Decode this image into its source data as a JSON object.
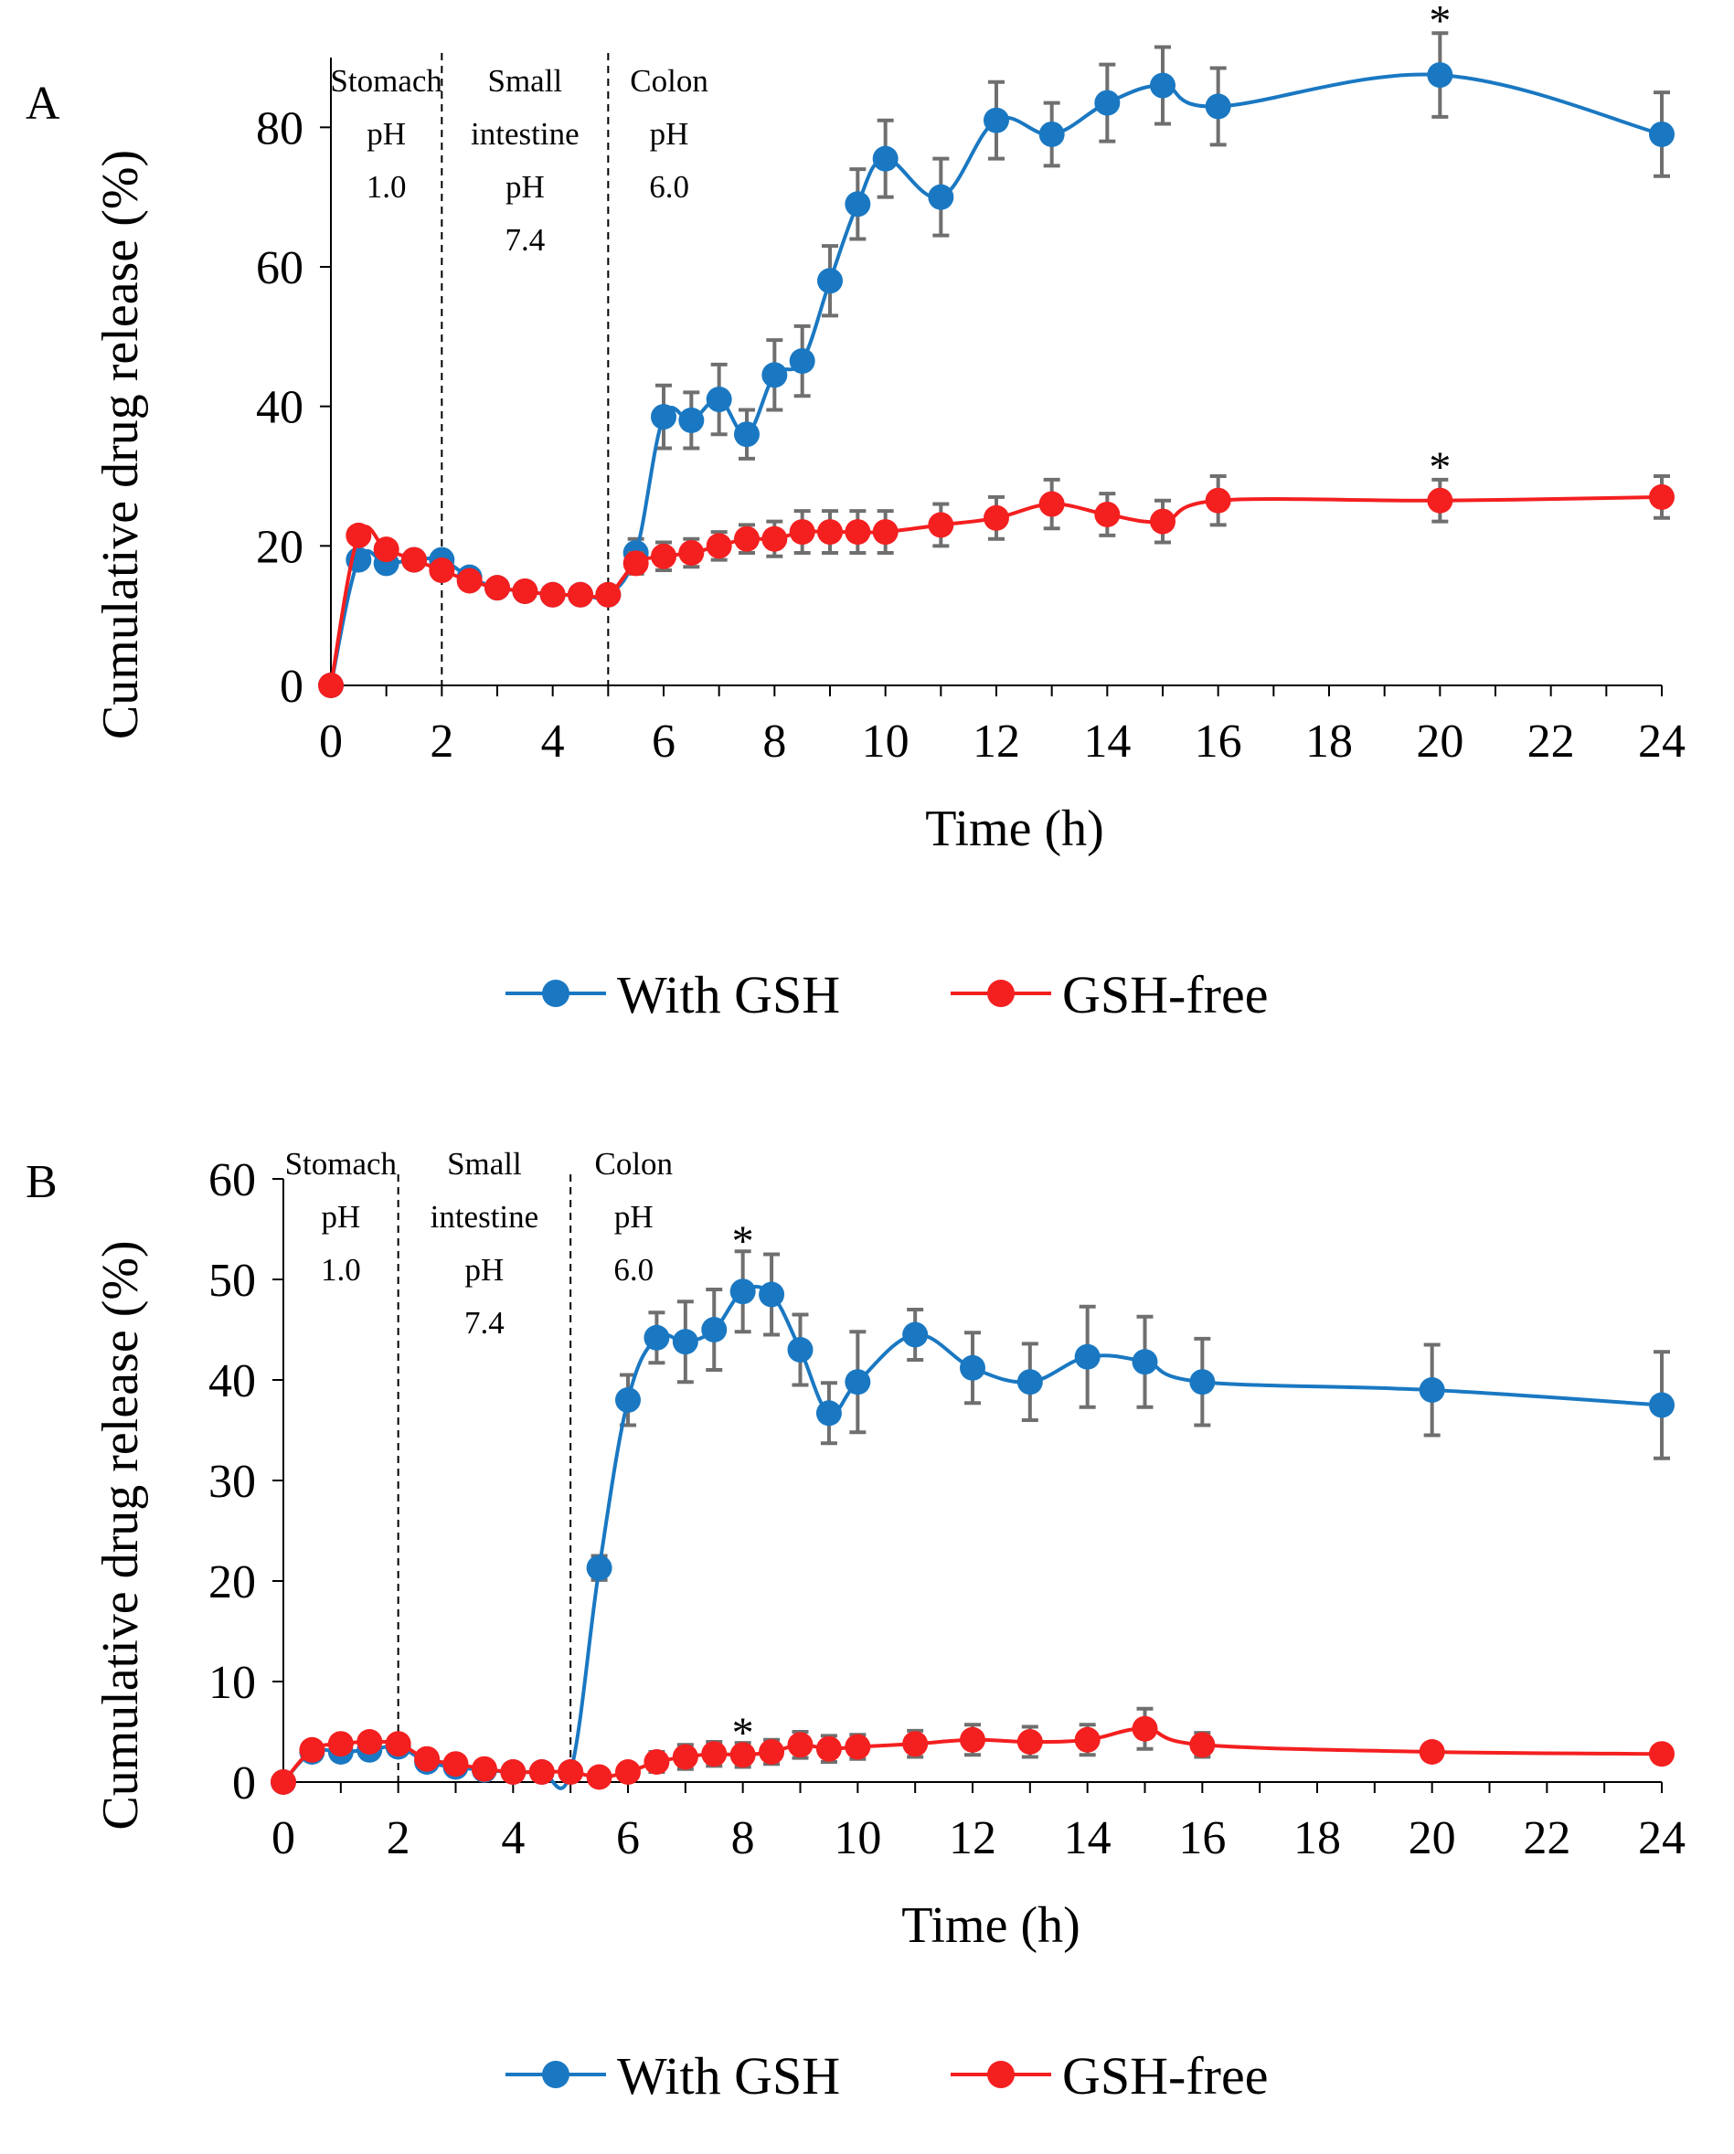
{
  "chart_data": [
    {
      "type": "line",
      "panel": "A",
      "xlabel": "Time (h)",
      "ylabel": "Cumulative drug release (%)",
      "xlim": [
        0,
        24
      ],
      "ylim": [
        0,
        90
      ],
      "x_ticks": [
        0,
        2,
        4,
        6,
        8,
        10,
        12,
        14,
        16,
        18,
        20,
        22,
        24
      ],
      "y_ticks": [
        0,
        20,
        40,
        60,
        80
      ],
      "regions": [
        {
          "lines": [
            "Stomach",
            "pH",
            "1.0"
          ]
        },
        {
          "lines": [
            "Small",
            "intestine",
            "pH",
            "7.4"
          ]
        },
        {
          "lines": [
            "Colon",
            "pH",
            "6.0"
          ]
        }
      ],
      "region_boundaries": [
        2,
        5
      ],
      "significance": [
        {
          "series": "With GSH",
          "x": 20,
          "label": "*"
        },
        {
          "series": "GSH-free",
          "x": 20,
          "label": "*"
        }
      ],
      "series": [
        {
          "name": "With GSH",
          "color": "#1a78c2",
          "x": [
            0,
            0.5,
            1,
            1.5,
            2,
            2.5,
            3,
            3.5,
            4,
            4.5,
            5,
            5.5,
            6,
            6.5,
            7,
            7.5,
            8,
            8.5,
            9,
            9.5,
            10,
            11,
            12,
            13,
            14,
            15,
            16,
            20,
            24
          ],
          "y": [
            0,
            18,
            17.5,
            18,
            18,
            15.5,
            14,
            13.5,
            13,
            13,
            13,
            19,
            38.5,
            38,
            41,
            36,
            44.5,
            46.5,
            58,
            69,
            75.5,
            70,
            81,
            79,
            83.5,
            86,
            83,
            87.5,
            79
          ],
          "err": [
            0,
            1,
            1,
            1,
            1,
            1,
            1,
            1,
            1,
            1,
            1,
            2,
            4.5,
            4,
            5,
            3.5,
            5,
            5,
            5,
            5,
            5.5,
            5.5,
            5.5,
            4.5,
            5.5,
            5.5,
            5.5,
            6,
            6
          ]
        },
        {
          "name": "GSH-free",
          "color": "#f41f1f",
          "x": [
            0,
            0.5,
            1,
            1.5,
            2,
            2.5,
            3,
            3.5,
            4,
            4.5,
            5,
            5.5,
            6,
            6.5,
            7,
            7.5,
            8,
            8.5,
            9,
            9.5,
            10,
            11,
            12,
            13,
            14,
            15,
            16,
            20,
            24
          ],
          "y": [
            0,
            21.5,
            19.5,
            18,
            16.5,
            15,
            14,
            13.5,
            13,
            13,
            13,
            17.5,
            18.5,
            19,
            20,
            21,
            21,
            22,
            22,
            22,
            22,
            23,
            24,
            26,
            24.5,
            23.5,
            26.5,
            26.5,
            27
          ],
          "err": [
            0,
            1,
            1,
            1,
            1,
            1,
            1,
            1,
            1,
            1,
            1,
            1.5,
            2,
            2,
            2,
            2,
            2.5,
            3,
            3,
            3,
            3,
            3,
            3,
            3.5,
            3,
            3,
            3.5,
            3,
            3
          ]
        }
      ]
    },
    {
      "type": "line",
      "panel": "B",
      "xlabel": "Time (h)",
      "ylabel": "Cumulative drug release (%)",
      "xlim": [
        0,
        24
      ],
      "ylim": [
        0,
        60
      ],
      "x_ticks": [
        0,
        2,
        4,
        6,
        8,
        10,
        12,
        14,
        16,
        18,
        20,
        22,
        24
      ],
      "y_ticks": [
        0,
        10,
        20,
        30,
        40,
        50,
        60
      ],
      "regions": [
        {
          "lines": [
            "Stomach",
            "pH",
            "1.0"
          ]
        },
        {
          "lines": [
            "Small",
            "intestine",
            "pH",
            "7.4"
          ]
        },
        {
          "lines": [
            "Colon",
            "pH",
            "6.0"
          ]
        }
      ],
      "region_boundaries": [
        2,
        5
      ],
      "significance": [
        {
          "series": "With GSH",
          "x": 8,
          "label": "*"
        },
        {
          "series": "GSH-free",
          "x": 8,
          "label": "*"
        }
      ],
      "series": [
        {
          "name": "With GSH",
          "color": "#1a78c2",
          "x": [
            0,
            0.5,
            1,
            1.5,
            2,
            2.5,
            3,
            3.5,
            4,
            4.5,
            5,
            5.5,
            6,
            6.5,
            7,
            7.5,
            8,
            8.5,
            9,
            9.5,
            10,
            11,
            12,
            13,
            14,
            15,
            16,
            20,
            24
          ],
          "y": [
            0,
            3,
            3,
            3.2,
            3.5,
            2,
            1.5,
            1.2,
            1,
            1,
            1,
            21.3,
            38,
            44.2,
            43.8,
            45,
            48.8,
            48.5,
            43,
            36.7,
            39.8,
            44.5,
            41.2,
            39.8,
            42.3,
            41.8,
            39.8,
            39,
            37.5
          ],
          "err": [
            0,
            0.8,
            0.8,
            0.8,
            0.8,
            0.8,
            0.8,
            0.8,
            0.8,
            0.8,
            0.8,
            1.2,
            2.5,
            2.5,
            4,
            4,
            4,
            4,
            3.5,
            3,
            5,
            2.5,
            3.5,
            3.8,
            5,
            4.5,
            4.3,
            4.5,
            5.3
          ]
        },
        {
          "name": "GSH-free",
          "color": "#f41f1f",
          "x": [
            0,
            0.5,
            1,
            1.5,
            2,
            2.5,
            3,
            3.5,
            4,
            4.5,
            5,
            5.5,
            6,
            6.5,
            7,
            7.5,
            8,
            8.5,
            9,
            9.5,
            10,
            11,
            12,
            13,
            14,
            15,
            16,
            20,
            24
          ],
          "y": [
            0,
            3.2,
            3.8,
            4,
            3.8,
            2.3,
            1.8,
            1.3,
            1,
            1,
            1,
            0.5,
            1,
            2,
            2.5,
            2.8,
            2.7,
            3,
            3.7,
            3.3,
            3.5,
            3.8,
            4.2,
            4,
            4.2,
            5.3,
            3.7,
            3,
            2.8
          ],
          "err": [
            0,
            0.7,
            0.7,
            0.7,
            0.7,
            0.7,
            0.7,
            0.7,
            0.7,
            0.7,
            0.7,
            0.5,
            0.5,
            1,
            1.2,
            1.2,
            1.2,
            1.2,
            1.3,
            1.3,
            1.2,
            1.3,
            1.5,
            1.5,
            1.5,
            2,
            1.2,
            0.8,
            0.8
          ]
        }
      ]
    }
  ],
  "legend": [
    {
      "label": "With GSH",
      "color": "#1a78c2"
    },
    {
      "label": "GSH-free",
      "color": "#f41f1f"
    }
  ]
}
